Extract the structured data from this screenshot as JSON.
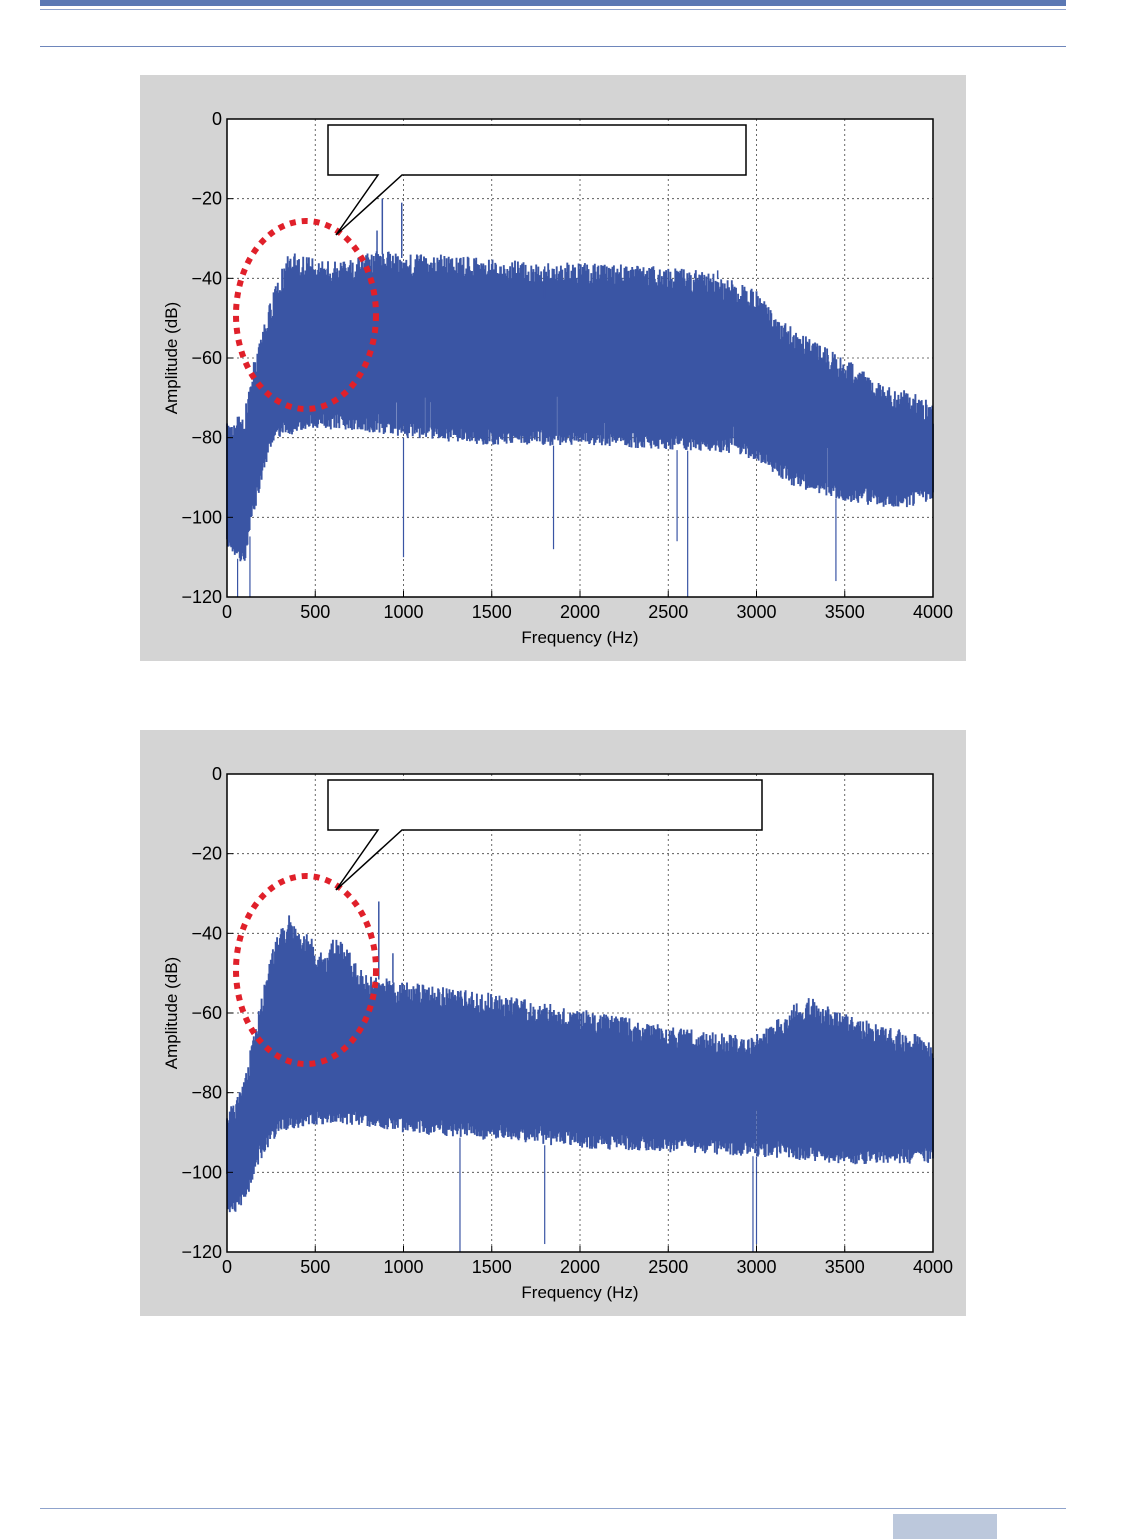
{
  "chart_data": [
    {
      "type": "line",
      "title": "",
      "xlabel": "Frequency (Hz)",
      "ylabel": "Amplitude (dB)",
      "xlim": [
        0,
        4000
      ],
      "ylim": [
        -120,
        0
      ],
      "xticks": [
        0,
        500,
        1000,
        1500,
        2000,
        2500,
        3000,
        3500,
        4000
      ],
      "yticks": [
        0,
        -20,
        -40,
        -60,
        -80,
        -100,
        -120
      ],
      "grid": true,
      "color": "#3a55a4",
      "callout": "",
      "upper_envelope": [
        [
          0,
          -76
        ],
        [
          100,
          -74
        ],
        [
          150,
          -62
        ],
        [
          200,
          -54
        ],
        [
          250,
          -46
        ],
        [
          300,
          -40
        ],
        [
          350,
          -34
        ],
        [
          400,
          -35
        ],
        [
          500,
          -36
        ],
        [
          600,
          -36
        ],
        [
          700,
          -36
        ],
        [
          800,
          -34
        ],
        [
          900,
          -34
        ],
        [
          1000,
          -35
        ],
        [
          1200,
          -35
        ],
        [
          1500,
          -36
        ],
        [
          1800,
          -37
        ],
        [
          2000,
          -37
        ],
        [
          2200,
          -37
        ],
        [
          2500,
          -38
        ],
        [
          2700,
          -39
        ],
        [
          2900,
          -42
        ],
        [
          3000,
          -44
        ],
        [
          3100,
          -50
        ],
        [
          3300,
          -56
        ],
        [
          3500,
          -61
        ],
        [
          3700,
          -67
        ],
        [
          3900,
          -70
        ],
        [
          4000,
          -72
        ]
      ],
      "lower_envelope": [
        [
          0,
          -108
        ],
        [
          100,
          -112
        ],
        [
          150,
          -100
        ],
        [
          200,
          -90
        ],
        [
          250,
          -82
        ],
        [
          300,
          -80
        ],
        [
          400,
          -79
        ],
        [
          500,
          -78
        ],
        [
          700,
          -78
        ],
        [
          1000,
          -80
        ],
        [
          1500,
          -82
        ],
        [
          2000,
          -82
        ],
        [
          2500,
          -83
        ],
        [
          2900,
          -84
        ],
        [
          3000,
          -86
        ],
        [
          3200,
          -92
        ],
        [
          3500,
          -96
        ],
        [
          3800,
          -98
        ],
        [
          4000,
          -96
        ]
      ],
      "spikes": [
        [
          850,
          -28
        ],
        [
          880,
          -20
        ],
        [
          990,
          -21
        ],
        [
          1800,
          -45
        ],
        [
          2650,
          -40
        ],
        [
          2780,
          -38
        ]
      ],
      "dips": [
        [
          60,
          -120
        ],
        [
          130,
          -120
        ],
        [
          1000,
          -110
        ],
        [
          1850,
          -108
        ],
        [
          2550,
          -106
        ],
        [
          2610,
          -120
        ],
        [
          3450,
          -116
        ]
      ]
    },
    {
      "type": "line",
      "title": "",
      "xlabel": "Frequency (Hz)",
      "ylabel": "Amplitude (dB)",
      "xlim": [
        0,
        4000
      ],
      "ylim": [
        -120,
        0
      ],
      "xticks": [
        0,
        500,
        1000,
        1500,
        2000,
        2500,
        3000,
        3500,
        4000
      ],
      "yticks": [
        0,
        -20,
        -40,
        -60,
        -80,
        -100,
        -120
      ],
      "grid": true,
      "color": "#3a55a4",
      "callout": "",
      "upper_envelope": [
        [
          0,
          -86
        ],
        [
          100,
          -78
        ],
        [
          150,
          -66
        ],
        [
          200,
          -56
        ],
        [
          250,
          -46
        ],
        [
          300,
          -40
        ],
        [
          350,
          -36
        ],
        [
          400,
          -40
        ],
        [
          450,
          -41
        ],
        [
          500,
          -43
        ],
        [
          550,
          -47
        ],
        [
          600,
          -42
        ],
        [
          650,
          -43
        ],
        [
          700,
          -46
        ],
        [
          750,
          -50
        ],
        [
          800,
          -51
        ],
        [
          900,
          -52
        ],
        [
          1000,
          -53
        ],
        [
          1500,
          -56
        ],
        [
          2000,
          -60
        ],
        [
          2500,
          -64
        ],
        [
          2800,
          -66
        ],
        [
          3000,
          -66
        ],
        [
          3100,
          -63
        ],
        [
          3200,
          -59
        ],
        [
          3300,
          -57
        ],
        [
          3400,
          -59
        ],
        [
          3500,
          -61
        ],
        [
          3700,
          -64
        ],
        [
          3900,
          -66
        ],
        [
          4000,
          -67
        ]
      ],
      "lower_envelope": [
        [
          0,
          -112
        ],
        [
          100,
          -108
        ],
        [
          200,
          -96
        ],
        [
          300,
          -90
        ],
        [
          500,
          -88
        ],
        [
          700,
          -88
        ],
        [
          1000,
          -90
        ],
        [
          1500,
          -92
        ],
        [
          2000,
          -94
        ],
        [
          2500,
          -95
        ],
        [
          3000,
          -96
        ],
        [
          3500,
          -98
        ],
        [
          4000,
          -98
        ]
      ],
      "spikes": [
        [
          860,
          -32
        ],
        [
          940,
          -45
        ]
      ],
      "dips": [
        [
          1320,
          -120
        ],
        [
          1800,
          -118
        ],
        [
          2980,
          -120
        ],
        [
          3000,
          -118
        ]
      ]
    }
  ]
}
